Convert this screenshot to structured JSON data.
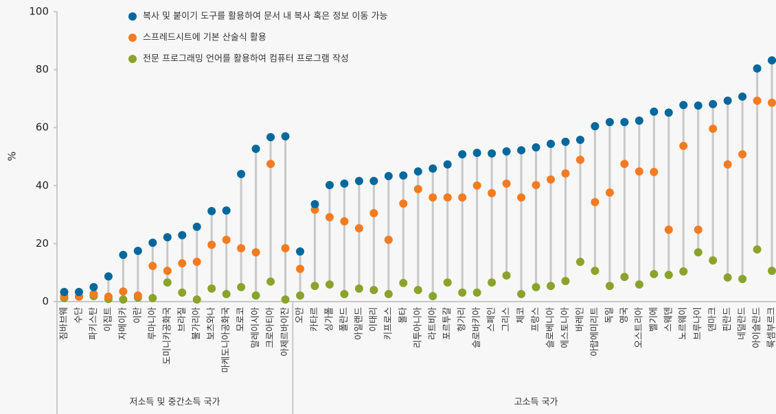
{
  "chart_data": {
    "type": "dot",
    "ylabel": "%",
    "ylim": [
      0,
      100
    ],
    "yticks": [
      0,
      20,
      40,
      60,
      80,
      100
    ],
    "groups": [
      {
        "name": "저소득 및 중간소득 국가",
        "categories": [
          "짐바브웨",
          "수단",
          "파키스탄",
          "이집트",
          "자메이카",
          "이란",
          "루마니아",
          "도미니카공화국",
          "브라질",
          "불가리아",
          "보츠와나",
          "마케도니아공화국",
          "모로코",
          "말레이시아",
          "크로아티아",
          "아제르바이잔"
        ]
      },
      {
        "name": "고소득 국가",
        "categories": [
          "오만",
          "카타르",
          "싱가폴",
          "폴란드",
          "아일랜드",
          "이태리",
          "키프로스",
          "몰타",
          "리투아니아",
          "라트비아",
          "포르투갈",
          "헝가리",
          "슬로바키아",
          "스페인",
          "그리스",
          "체코",
          "프랑스",
          "슬로베니아",
          "에스토니아",
          "바레인",
          "아랍에미리트",
          "독일",
          "영국",
          "오스트리아",
          "벨기에",
          "스웨덴",
          "노르웨이",
          "브루나이",
          "덴마크",
          "핀란드",
          "네덜란드",
          "아이슬란드",
          "룩셈부르크"
        ]
      }
    ],
    "series": [
      {
        "name": "복사 및 붙이기 도구를 활용하여 문서 내 복사 혹은 정보 이동 가능",
        "color": "#00689d",
        "values": [
          3.3,
          3.3,
          5.0,
          8.7,
          16.1,
          17.5,
          20.3,
          22.2,
          22.9,
          25.8,
          31.2,
          31.4,
          44.0,
          52.7,
          56.7,
          57.0,
          17.3,
          33.6,
          40.2,
          40.7,
          41.6,
          41.6,
          43.3,
          43.5,
          44.9,
          45.9,
          47.3,
          50.8,
          51.3,
          51.1,
          51.8,
          52.2,
          53.2,
          54.4,
          55.1,
          55.8,
          60.5,
          61.9,
          61.9,
          62.4,
          65.5,
          65.2,
          67.8,
          67.6,
          68.1,
          69.3,
          70.7,
          80.4,
          83.2
        ]
      },
      {
        "name": "스프레드시트에 기본 산술식 활용",
        "color": "#f47b20",
        "values": [
          1.9,
          1.7,
          2.6,
          1.7,
          3.5,
          2.1,
          12.3,
          10.6,
          13.2,
          13.7,
          19.6,
          21.3,
          18.4,
          17.0,
          47.5,
          18.4,
          11.3,
          31.7,
          29.1,
          27.7,
          25.3,
          30.5,
          21.3,
          33.8,
          38.8,
          35.9,
          35.9,
          35.9,
          40.0,
          37.4,
          40.7,
          35.9,
          40.2,
          42.1,
          44.2,
          48.9,
          34.3,
          37.6,
          47.5,
          44.9,
          44.7,
          24.8,
          53.7,
          24.8,
          59.6,
          47.3,
          50.8,
          69.3,
          68.6
        ]
      },
      {
        "name": "전문 프로그래밍 언어를 활용하여 컴퓨터 프로그램 작성",
        "color": "#8aa32b",
        "values": [
          1.2,
          1.7,
          1.9,
          0.9,
          0.7,
          1.4,
          1.2,
          6.6,
          3.1,
          0.7,
          4.5,
          2.6,
          5.0,
          2.1,
          6.9,
          0.7,
          2.1,
          5.4,
          5.9,
          2.6,
          4.5,
          4.0,
          2.6,
          6.4,
          4.0,
          1.9,
          6.6,
          3.1,
          3.1,
          6.6,
          9.0,
          2.6,
          5.0,
          5.4,
          7.1,
          13.7,
          10.6,
          5.4,
          8.5,
          5.9,
          9.5,
          9.2,
          10.4,
          17.0,
          14.2,
          8.3,
          7.8,
          18.0,
          10.6
        ]
      }
    ]
  }
}
